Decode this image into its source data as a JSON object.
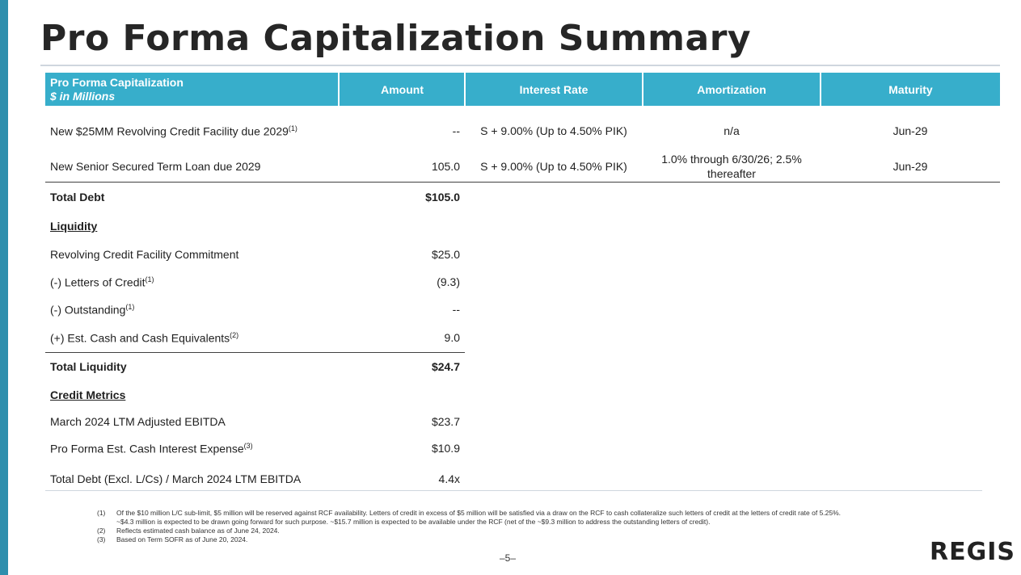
{
  "title": "Pro Forma Capitalization Summary",
  "header": {
    "label_line1": "Pro Forma Capitalization",
    "label_line2": "$ in Millions",
    "amount": "Amount",
    "interest_rate": "Interest Rate",
    "amortization": "Amortization",
    "maturity": "Maturity"
  },
  "debt_rows": [
    {
      "label": "New $25MM Revolving Credit Facility due 2029",
      "sup": "(1)",
      "amount": "--",
      "rate": "S + 9.00% (Up to 4.50% PIK)",
      "amort": "n/a",
      "maturity": "Jun-29"
    },
    {
      "label": "New Senior Secured Term Loan due 2029",
      "amount": "105.0",
      "rate": "S + 9.00% (Up to 4.50% PIK)",
      "amort_line1": "1.0% through 6/30/26; 2.5%",
      "amort_line2": "thereafter",
      "maturity": "Jun-29"
    }
  ],
  "total_debt": {
    "label": "Total Debt",
    "amount": "$105.0"
  },
  "liquidity": {
    "heading": "Liquidity",
    "rows": [
      {
        "label": "Revolving Credit Facility Commitment",
        "amount": "$25.0"
      },
      {
        "label": "(-) Letters of Credit",
        "sup": "(1)",
        "amount": "(9.3)"
      },
      {
        "label": "(-) Outstanding",
        "sup": "(1)",
        "amount": "--"
      },
      {
        "label": "(+) Est. Cash and Cash Equivalents",
        "sup": "(2)",
        "amount": "9.0"
      }
    ],
    "total_label": "Total Liquidity",
    "total_amount": "$24.7"
  },
  "credit_metrics": {
    "heading": "Credit Metrics",
    "rows": [
      {
        "label": "March 2024 LTM Adjusted EBITDA",
        "amount": "$23.7"
      },
      {
        "label": "Pro Forma Est. Cash Interest Expense",
        "sup": "(3)",
        "amount": "$10.9"
      },
      {
        "label": "Total Debt (Excl. L/Cs) / March 2024 LTM EBITDA",
        "amount": "4.4x"
      }
    ]
  },
  "footnotes": [
    {
      "num": "(1)",
      "line1": "Of the $10 million L/C sub-limit, $5 million will be reserved against RCF availability. Letters of credit in excess of $5 million will be satisfied via a draw on the RCF to cash collateralize such letters of credit at the letters of credit rate of 5.25%.",
      "line2": "~$4.3 million is expected to be drawn going forward for such purpose. ~$15.7 million is expected to be available under the RCF (net of the ~$9.3 million to address the outstanding letters of credit)."
    },
    {
      "num": "(2)",
      "line1": "Reflects estimated cash balance as of June 24, 2024."
    },
    {
      "num": "(3)",
      "line1": "Based on Term SOFR as of June 20, 2024."
    }
  ],
  "page_number": "–5–",
  "logo_text": "REGIS",
  "colors": {
    "header_bg": "#37aecb",
    "left_bar": "#2e8fad"
  }
}
